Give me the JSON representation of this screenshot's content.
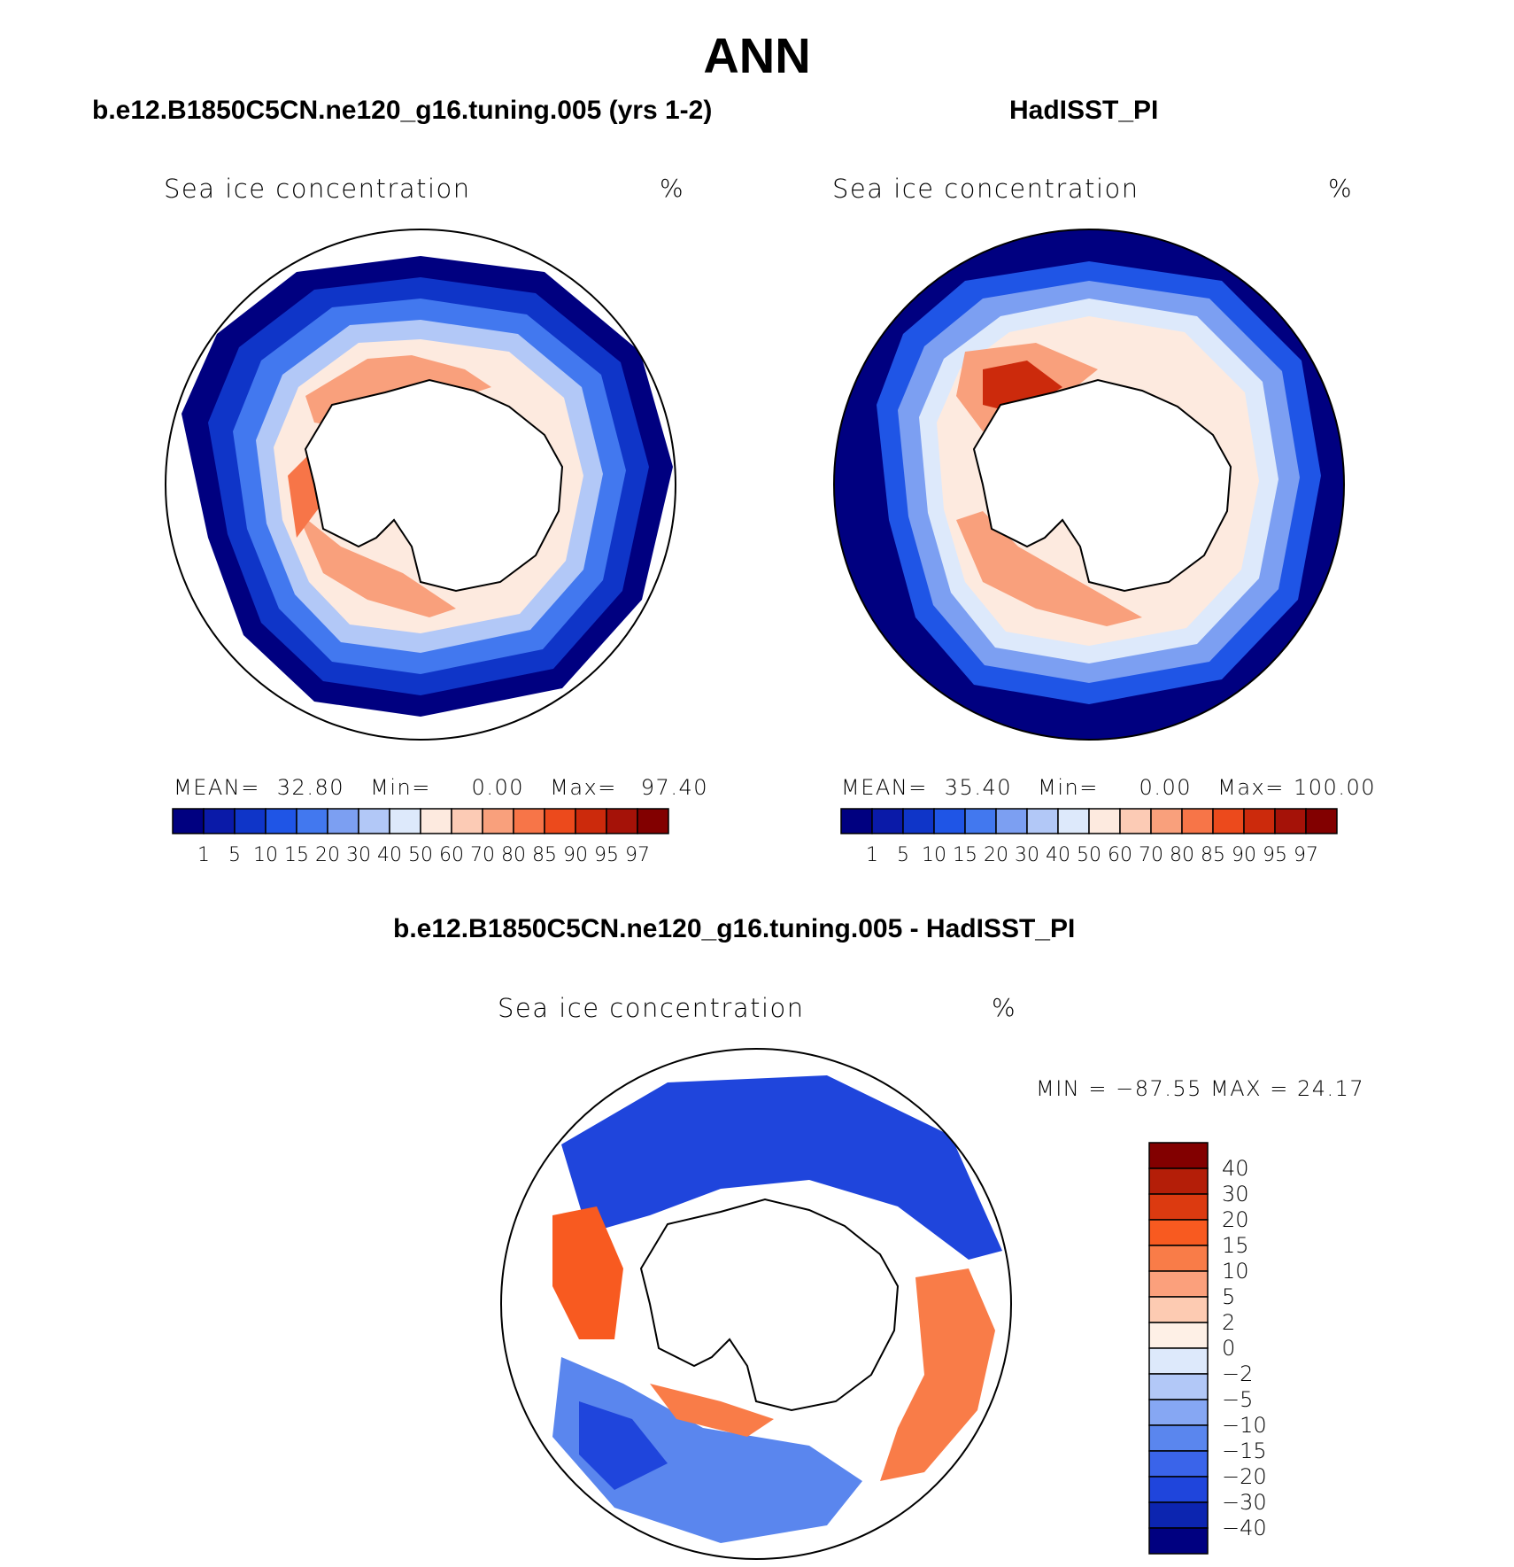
{
  "title": "ANN",
  "panels": [
    {
      "heading": "b.e12.B1850C5CN.ne120_g16.tuning.005 (yrs 1-2)",
      "field": "Sea ice concentration",
      "units": "%",
      "stats": {
        "mean_label": "MEAN=",
        "mean": "32.80",
        "min_label": "Min=",
        "min": "0.00",
        "max_label": "Max=",
        "max": "97.40"
      }
    },
    {
      "heading": "HadISST_PI",
      "field": "Sea ice concentration",
      "units": "%",
      "stats": {
        "mean_label": "MEAN=",
        "mean": "35.40",
        "min_label": "Min=",
        "min": "0.00",
        "max_label": "Max=",
        "max": "100.00"
      }
    }
  ],
  "diff_panel": {
    "heading": "b.e12.B1850C5CN.ne120_g16.tuning.005 - HadISST_PI",
    "field": "Sea ice concentration",
    "units": "%",
    "minmax": "MIN = −87.55 MAX =   24.17"
  },
  "colorbar_levels": [
    "1",
    "5",
    "10",
    "15",
    "20",
    "30",
    "40",
    "50",
    "60",
    "70",
    "80",
    "85",
    "90",
    "95",
    "97"
  ],
  "colorbar_colors": [
    "#000080",
    "#0a1aa8",
    "#0f35c8",
    "#1f55e6",
    "#4278ef",
    "#7c9ff2",
    "#b2c8f7",
    "#dde9fb",
    "#fdeadf",
    "#fccbb5",
    "#f9a07c",
    "#f77548",
    "#ec4a1c",
    "#cc2a0c",
    "#a51208",
    "#820000"
  ],
  "diff_levels": [
    "40",
    "30",
    "20",
    "15",
    "10",
    "5",
    "2",
    "0",
    "−2",
    "−5",
    "−10",
    "−15",
    "−20",
    "−30",
    "−40"
  ],
  "diff_colors": [
    "#820000",
    "#b41e08",
    "#dc3a10",
    "#f85a20",
    "#f97c48",
    "#fba07c",
    "#fdcbb2",
    "#fef0e6",
    "#dde9fb",
    "#b2c8f7",
    "#86a7f3",
    "#5a86ee",
    "#3a64ea",
    "#1f45dc",
    "#0c25b0",
    "#000080"
  ]
}
